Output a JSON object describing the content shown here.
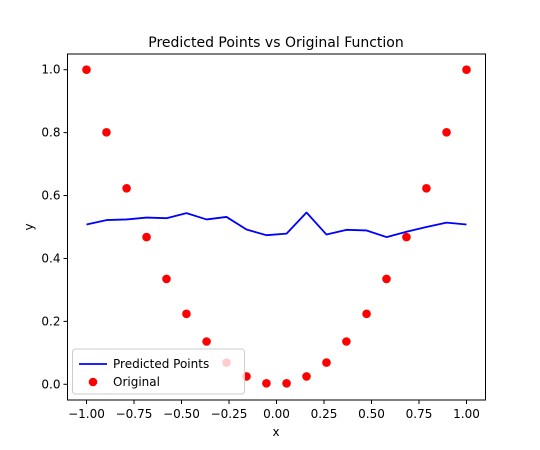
{
  "chart_data": {
    "type": "line",
    "title": "Predicted Points vs Original Function",
    "xlabel": "x",
    "ylabel": "y",
    "xlim": [
      -1.1,
      1.1
    ],
    "ylim": [
      -0.05,
      1.05
    ],
    "xticks": [
      "−1.00",
      "−0.75",
      "−0.50",
      "−0.25",
      "0.00",
      "0.25",
      "0.50",
      "0.75",
      "1.00"
    ],
    "yticks": [
      "0.0",
      "0.2",
      "0.4",
      "0.6",
      "0.8",
      "1.0"
    ],
    "xtick_values": [
      -1.0,
      -0.75,
      -0.5,
      -0.25,
      0.0,
      0.25,
      0.5,
      0.75,
      1.0
    ],
    "ytick_values": [
      0.0,
      0.2,
      0.4,
      0.6,
      0.8,
      1.0
    ],
    "grid": false,
    "legend_position": "lower-left",
    "series": [
      {
        "name": "Predicted Points",
        "kind": "line",
        "color": "#0000ff",
        "x": [
          -1.0,
          -0.895,
          -0.789,
          -0.684,
          -0.579,
          -0.474,
          -0.368,
          -0.263,
          -0.158,
          -0.053,
          0.053,
          0.158,
          0.263,
          0.368,
          0.474,
          0.579,
          0.684,
          0.789,
          0.895,
          1.0
        ],
        "y": [
          0.508,
          0.522,
          0.524,
          0.53,
          0.528,
          0.544,
          0.524,
          0.532,
          0.492,
          0.474,
          0.479,
          0.546,
          0.476,
          0.491,
          0.489,
          0.468,
          0.485,
          0.5,
          0.514,
          0.508
        ]
      },
      {
        "name": "Original",
        "kind": "scatter",
        "color": "#ff0000",
        "x": [
          -1.0,
          -0.895,
          -0.789,
          -0.684,
          -0.579,
          -0.474,
          -0.368,
          -0.263,
          -0.158,
          -0.053,
          0.053,
          0.158,
          0.263,
          0.368,
          0.474,
          0.579,
          0.684,
          0.789,
          0.895,
          1.0
        ],
        "y": [
          1.0,
          0.801,
          0.623,
          0.468,
          0.335,
          0.224,
          0.136,
          0.069,
          0.025,
          0.003,
          0.003,
          0.025,
          0.069,
          0.136,
          0.224,
          0.335,
          0.468,
          0.623,
          0.801,
          1.0
        ]
      }
    ]
  }
}
